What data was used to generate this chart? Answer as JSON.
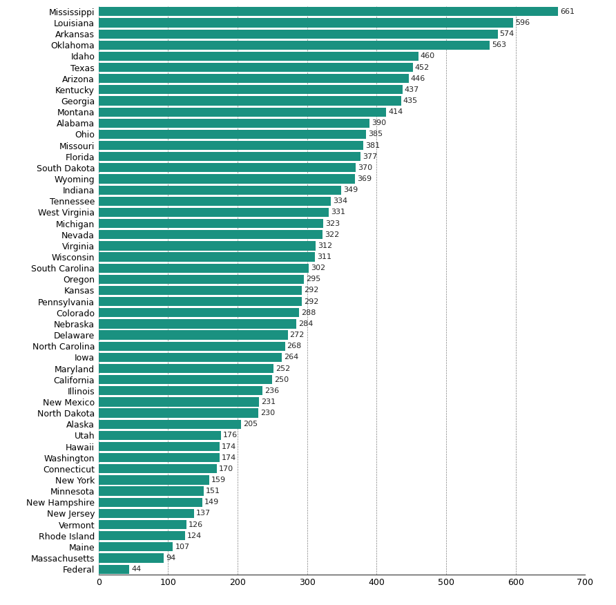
{
  "states": [
    "Mississippi",
    "Louisiana",
    "Arkansas",
    "Oklahoma",
    "Idaho",
    "Texas",
    "Arizona",
    "Kentucky",
    "Georgia",
    "Montana",
    "Alabama",
    "Ohio",
    "Missouri",
    "Florida",
    "South Dakota",
    "Wyoming",
    "Indiana",
    "Tennessee",
    "West Virginia",
    "Michigan",
    "Nevada",
    "Virginia",
    "Wisconsin",
    "South Carolina",
    "Oregon",
    "Kansas",
    "Pennsylvania",
    "Colorado",
    "Nebraska",
    "Delaware",
    "North Carolina",
    "Iowa",
    "Maryland",
    "California",
    "Illinois",
    "New Mexico",
    "North Dakota",
    "Alaska",
    "Utah",
    "Hawaii",
    "Washington",
    "Connecticut",
    "New York",
    "Minnesota",
    "New Hampshire",
    "New Jersey",
    "Vermont",
    "Rhode Island",
    "Maine",
    "Massachusetts",
    "Federal"
  ],
  "values": [
    661,
    596,
    574,
    563,
    460,
    452,
    446,
    437,
    435,
    414,
    390,
    385,
    381,
    377,
    370,
    369,
    349,
    334,
    331,
    323,
    322,
    312,
    311,
    302,
    295,
    292,
    292,
    288,
    284,
    272,
    268,
    264,
    252,
    250,
    236,
    231,
    230,
    205,
    176,
    174,
    174,
    170,
    159,
    151,
    149,
    137,
    126,
    124,
    107,
    94,
    44
  ],
  "bar_color": "#1a9180",
  "background_color": "#ffffff",
  "xlim": [
    0,
    700
  ],
  "xticks": [
    0,
    100,
    200,
    300,
    400,
    500,
    600,
    700
  ],
  "grid_color": "#000000",
  "tick_fontsize": 9,
  "label_fontsize": 9,
  "value_fontsize": 8,
  "figwidth": 8.92,
  "figheight": 8.76,
  "dpi": 100
}
